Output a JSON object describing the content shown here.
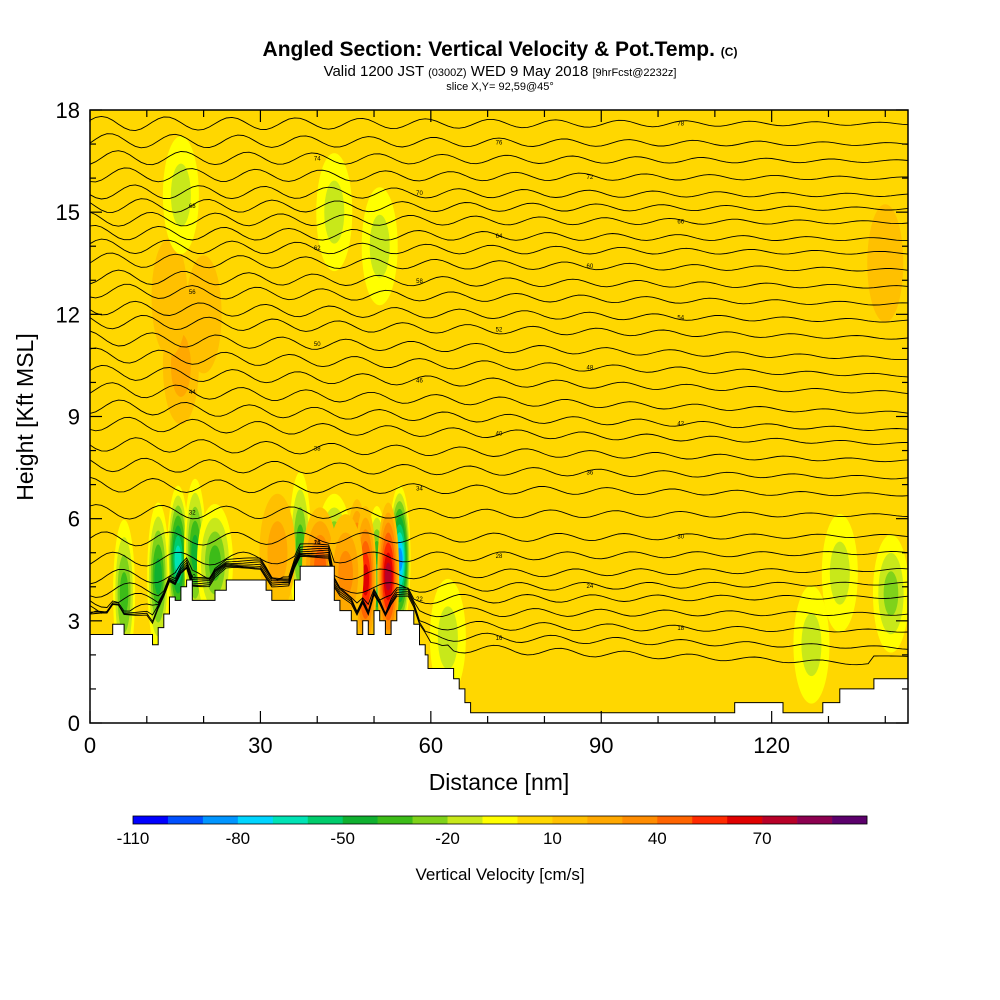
{
  "title": {
    "main": "Angled Section: Vertical Velocity & Pot.Temp.",
    "main_unit": "(C)",
    "valid_prefix": "Valid 1200 JST",
    "valid_utc": "(0300Z)",
    "valid_date": "WED 9 May 2018",
    "forecast": "[9hrFcst@2232z]",
    "slice": "slice X,Y= 92,59@45°"
  },
  "chart_data": {
    "type": "heatmap",
    "xlabel": "Distance [nm]",
    "ylabel": "Height [Kft MSL]",
    "xlim": [
      0,
      144
    ],
    "ylim": [
      0,
      18
    ],
    "x_ticks": [
      0,
      30,
      60,
      90,
      120
    ],
    "y_ticks": [
      0,
      3,
      6,
      9,
      12,
      15,
      18
    ],
    "colorbar": {
      "label": "Vertical Velocity [cm/s]",
      "tick_labels": [
        "-110",
        "-80",
        "-50",
        "-20",
        "10",
        "40",
        "70"
      ],
      "tick_values": [
        -110,
        -80,
        -50,
        -20,
        10,
        40,
        70
      ],
      "range": [
        -110,
        100
      ],
      "step": 10,
      "colors": [
        "#0000ff",
        "#0050ff",
        "#0095ff",
        "#00d5ff",
        "#00e3b5",
        "#00cc6c",
        "#10b030",
        "#3cbc18",
        "#7fd21a",
        "#c8e81a",
        "#ffff00",
        "#ffd700",
        "#ffc000",
        "#ffa800",
        "#ff8c00",
        "#ff6400",
        "#ff2a00",
        "#e00000",
        "#b80028",
        "#8c0050",
        "#5c006c"
      ]
    },
    "terrain": [
      [
        0,
        2.6
      ],
      [
        3,
        2.6
      ],
      [
        4,
        2.9
      ],
      [
        5,
        2.9
      ],
      [
        6,
        2.6
      ],
      [
        10,
        2.6
      ],
      [
        11,
        2.3
      ],
      [
        12,
        2.8
      ],
      [
        13,
        3.2
      ],
      [
        14,
        3.7
      ],
      [
        15,
        3.6
      ],
      [
        16,
        4.0
      ],
      [
        17,
        4.2
      ],
      [
        18,
        3.6
      ],
      [
        21,
        3.6
      ],
      [
        22,
        3.9
      ],
      [
        24,
        4.2
      ],
      [
        30,
        4.2
      ],
      [
        31,
        3.9
      ],
      [
        32,
        3.6
      ],
      [
        35,
        3.6
      ],
      [
        36,
        4.2
      ],
      [
        37,
        4.6
      ],
      [
        42,
        4.6
      ],
      [
        43,
        3.6
      ],
      [
        44,
        3.3
      ],
      [
        46,
        3.0
      ],
      [
        47,
        2.6
      ],
      [
        48,
        3.0
      ],
      [
        49,
        2.6
      ],
      [
        50,
        3.3
      ],
      [
        51,
        3.0
      ],
      [
        52,
        2.6
      ],
      [
        53,
        3.0
      ],
      [
        54,
        3.3
      ],
      [
        56,
        3.3
      ],
      [
        57,
        2.9
      ],
      [
        58,
        2.3
      ],
      [
        59,
        2.0
      ],
      [
        59.5,
        1.6
      ],
      [
        63,
        1.6
      ],
      [
        64,
        1.3
      ],
      [
        65,
        1.0
      ],
      [
        66,
        0.6
      ],
      [
        67,
        0.3
      ],
      [
        113,
        0.3
      ],
      [
        113.5,
        0.6
      ],
      [
        121,
        0.6
      ],
      [
        122,
        0.3
      ],
      [
        128,
        0.3
      ],
      [
        129,
        0.6
      ],
      [
        132,
        1.0
      ],
      [
        137,
        1.0
      ],
      [
        138,
        1.3
      ],
      [
        144,
        1.3
      ]
    ],
    "vertical_velocity_cores": [
      {
        "x": 15.5,
        "y": 4.8,
        "w": -70
      },
      {
        "x": 18.5,
        "y": 5.0,
        "w": -50
      },
      {
        "x": 12,
        "y": 4.3,
        "w": -50
      },
      {
        "x": 6,
        "y": 3.8,
        "w": -45
      },
      {
        "x": 22,
        "y": 4.7,
        "w": -40
      },
      {
        "x": 37,
        "y": 5.2,
        "w": -45
      },
      {
        "x": 43,
        "y": 5.0,
        "w": -40
      },
      {
        "x": 50.5,
        "y": 4.2,
        "w": -60
      },
      {
        "x": 54.5,
        "y": 4.8,
        "w": -90
      },
      {
        "x": 47,
        "y": 4.4,
        "w": 60
      },
      {
        "x": 52.5,
        "y": 4.3,
        "w": 70
      },
      {
        "x": 48.5,
        "y": 4.2,
        "w": 60
      },
      {
        "x": 40.5,
        "y": 4.6,
        "w": 40
      },
      {
        "x": 45,
        "y": 4.4,
        "w": 30
      },
      {
        "x": 33,
        "y": 5.0,
        "w": 20
      },
      {
        "x": 16,
        "y": 10.5,
        "w": 25
      },
      {
        "x": 14,
        "y": 12.5,
        "w": 18
      },
      {
        "x": 20,
        "y": 12.0,
        "w": 15
      },
      {
        "x": 140,
        "y": 13.5,
        "w": 18
      },
      {
        "x": 63,
        "y": 2.5,
        "w": -22
      },
      {
        "x": 141,
        "y": 3.8,
        "w": -30
      },
      {
        "x": 132,
        "y": 4.4,
        "w": -25
      },
      {
        "x": 16,
        "y": 15.5,
        "w": -22
      },
      {
        "x": 43,
        "y": 15.0,
        "w": -25
      },
      {
        "x": 51,
        "y": 14.0,
        "w": -22
      },
      {
        "x": 127,
        "y": 2.3,
        "w": -20
      }
    ],
    "theta_isolines": [
      {
        "left": 2.6,
        "right": 1.7,
        "label": "14"
      },
      {
        "left": 2.8,
        "right": 2.2,
        "label": "16"
      },
      {
        "left": 3.0,
        "right": 2.7,
        "label": "18"
      },
      {
        "left": 3.3,
        "right": 3.2,
        "label": "20"
      },
      {
        "left": 3.6,
        "right": 3.7,
        "label": "22"
      },
      {
        "left": 3.9,
        "right": 4.1,
        "label": "24"
      },
      {
        "left": 4.3,
        "right": 4.5,
        "label": "26"
      },
      {
        "left": 4.8,
        "right": 5.0,
        "label": "28"
      },
      {
        "left": 5.4,
        "right": 5.5,
        "label": "30"
      },
      {
        "left": 6.2,
        "right": 6.1,
        "label": "32"
      },
      {
        "left": 7.0,
        "right": 6.7,
        "label": "34"
      },
      {
        "left": 7.6,
        "right": 7.2,
        "label": "36"
      },
      {
        "left": 8.2,
        "right": 7.7,
        "label": "38"
      },
      {
        "left": 8.8,
        "right": 8.2,
        "label": "40"
      },
      {
        "left": 9.3,
        "right": 8.6,
        "label": "42"
      },
      {
        "left": 9.8,
        "right": 9.1,
        "label": "44"
      },
      {
        "left": 10.3,
        "right": 9.7,
        "label": "46"
      },
      {
        "left": 10.8,
        "right": 10.2,
        "label": "48"
      },
      {
        "left": 11.3,
        "right": 10.7,
        "label": "50"
      },
      {
        "left": 11.8,
        "right": 11.3,
        "label": "52"
      },
      {
        "left": 12.2,
        "right": 11.8,
        "label": "54"
      },
      {
        "left": 12.7,
        "right": 12.3,
        "label": "56"
      },
      {
        "left": 13.1,
        "right": 12.8,
        "label": "58"
      },
      {
        "left": 13.6,
        "right": 13.3,
        "label": "60"
      },
      {
        "left": 14.0,
        "right": 13.8,
        "label": "62"
      },
      {
        "left": 14.4,
        "right": 14.2,
        "label": "64"
      },
      {
        "left": 14.8,
        "right": 14.7,
        "label": "66"
      },
      {
        "left": 15.2,
        "right": 15.1,
        "label": "68"
      },
      {
        "left": 15.6,
        "right": 15.5,
        "label": "70"
      },
      {
        "left": 16.1,
        "right": 16.0,
        "label": "72"
      },
      {
        "left": 16.6,
        "right": 16.5,
        "label": "74"
      },
      {
        "left": 17.1,
        "right": 17.0,
        "label": "76"
      },
      {
        "left": 17.6,
        "right": 17.6,
        "label": "78"
      }
    ]
  }
}
